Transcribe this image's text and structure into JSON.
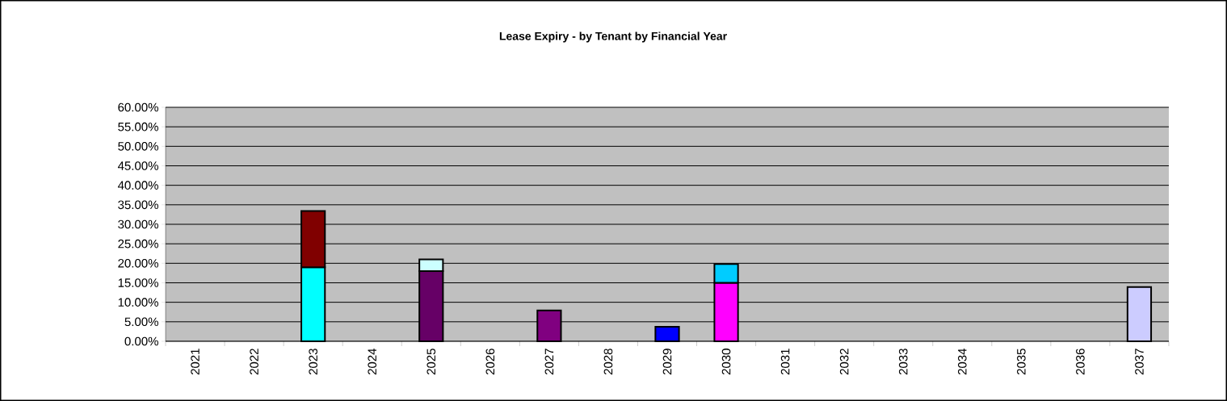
{
  "chart_data": {
    "type": "bar",
    "title": "Lease Expiry - by Tenant by Financial Year",
    "stacked": true,
    "categories": [
      "2021",
      "2022",
      "2023",
      "2024",
      "2025",
      "2026",
      "2027",
      "2028",
      "2029",
      "2030",
      "2031",
      "2032",
      "2033",
      "2034",
      "2035",
      "2036",
      "2037"
    ],
    "series": [
      {
        "color": "#00ffff",
        "values": [
          null,
          null,
          19,
          null,
          null,
          null,
          null,
          null,
          null,
          null,
          null,
          null,
          null,
          null,
          null,
          null,
          null
        ]
      },
      {
        "color": "#800000",
        "values": [
          null,
          null,
          14.4,
          null,
          null,
          null,
          null,
          null,
          null,
          null,
          null,
          null,
          null,
          null,
          null,
          null,
          null
        ]
      },
      {
        "color": "#660066",
        "values": [
          null,
          null,
          null,
          null,
          18,
          null,
          null,
          null,
          null,
          null,
          null,
          null,
          null,
          null,
          null,
          null,
          null
        ]
      },
      {
        "color": "#ccffff",
        "values": [
          null,
          null,
          null,
          null,
          3,
          null,
          null,
          null,
          null,
          null,
          null,
          null,
          null,
          null,
          null,
          null,
          null
        ]
      },
      {
        "color": "#800080",
        "values": [
          null,
          null,
          null,
          null,
          null,
          null,
          7.9,
          null,
          null,
          null,
          null,
          null,
          null,
          null,
          null,
          null,
          null
        ]
      },
      {
        "color": "#0000ff",
        "values": [
          null,
          null,
          null,
          null,
          null,
          null,
          null,
          null,
          3.7,
          null,
          null,
          null,
          null,
          null,
          null,
          null,
          null
        ]
      },
      {
        "color": "#ff00ff",
        "values": [
          null,
          null,
          null,
          null,
          null,
          null,
          null,
          null,
          null,
          15,
          null,
          null,
          null,
          null,
          null,
          null,
          null
        ]
      },
      {
        "color": "#00ccff",
        "values": [
          null,
          null,
          null,
          null,
          null,
          null,
          null,
          null,
          null,
          4.8,
          null,
          null,
          null,
          null,
          null,
          null,
          null
        ]
      },
      {
        "color": "#ccccff",
        "values": [
          null,
          null,
          null,
          null,
          null,
          null,
          null,
          null,
          null,
          null,
          null,
          null,
          null,
          null,
          null,
          null,
          13.9
        ]
      }
    ],
    "ylim": [
      0,
      60
    ],
    "yticks": [
      {
        "value": 0,
        "label": "0.00%"
      },
      {
        "value": 5,
        "label": "5.00%"
      },
      {
        "value": 10,
        "label": "10.00%"
      },
      {
        "value": 15,
        "label": "15.00%"
      },
      {
        "value": 20,
        "label": "20.00%"
      },
      {
        "value": 25,
        "label": "25.00%"
      },
      {
        "value": 30,
        "label": "30.00%"
      },
      {
        "value": 35,
        "label": "35.00%"
      },
      {
        "value": 40,
        "label": "40.00%"
      },
      {
        "value": 45,
        "label": "45.00%"
      },
      {
        "value": 50,
        "label": "50.00%"
      },
      {
        "value": 55,
        "label": "55.00%"
      },
      {
        "value": 60,
        "label": "60.00%"
      }
    ],
    "grid": "y"
  }
}
